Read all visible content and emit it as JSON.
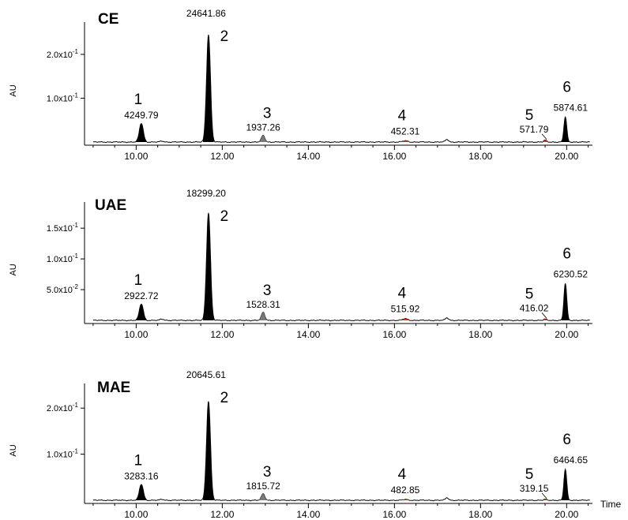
{
  "chart_data": [
    {
      "type": "line",
      "title": "CE",
      "ylabel": "AU",
      "xlabel": "",
      "xlim": [
        8.8,
        20.6
      ],
      "ylim": [
        -0.01,
        0.27
      ],
      "x_ticks": [
        "10.00",
        "12.00",
        "14.00",
        "16.00",
        "18.00",
        "20.00"
      ],
      "y_ticks": [
        {
          "value": 0.1,
          "label": "1.0x10"
        },
        {
          "value": 0.2,
          "label": "2.0x10"
        }
      ],
      "y_tick_exponent": "-1",
      "peaks": [
        {
          "number": "1",
          "time": 10.12,
          "height": 0.043,
          "area": "4249.79"
        },
        {
          "number": "2",
          "time": 11.68,
          "height": 0.245,
          "area": "24641.86"
        },
        {
          "number": "3",
          "time": 12.95,
          "height": 0.015,
          "area": "1937.26"
        },
        {
          "number": "4",
          "time": 16.25,
          "height": 0.003,
          "area": "452.31"
        },
        {
          "number": "5",
          "time": 19.5,
          "height": 0.004,
          "area": "571.79"
        },
        {
          "number": "6",
          "time": 19.97,
          "height": 0.057,
          "area": "5874.61"
        }
      ]
    },
    {
      "type": "line",
      "title": "UAE",
      "ylabel": "AU",
      "xlabel": "",
      "xlim": [
        8.8,
        20.6
      ],
      "ylim": [
        -0.01,
        0.19
      ],
      "x_ticks": [
        "10.00",
        "12.00",
        "14.00",
        "16.00",
        "18.00",
        "20.00"
      ],
      "y_ticks": [
        {
          "value": 0.05,
          "label": "5.0x10",
          "exp": "-2"
        },
        {
          "value": 0.1,
          "label": "1.0x10",
          "exp": "-1"
        },
        {
          "value": 0.15,
          "label": "1.5x10",
          "exp": "-1"
        }
      ],
      "peaks": [
        {
          "number": "1",
          "time": 10.12,
          "height": 0.027,
          "area": "2922.72"
        },
        {
          "number": "2",
          "time": 11.68,
          "height": 0.175,
          "area": "18299.20"
        },
        {
          "number": "3",
          "time": 12.95,
          "height": 0.013,
          "area": "1528.31"
        },
        {
          "number": "4",
          "time": 16.25,
          "height": 0.003,
          "area": "515.92"
        },
        {
          "number": "5",
          "time": 19.5,
          "height": 0.002,
          "area": "416.02"
        },
        {
          "number": "6",
          "time": 19.97,
          "height": 0.06,
          "area": "6230.52"
        }
      ]
    },
    {
      "type": "line",
      "title": "MAE",
      "ylabel": "AU",
      "xlabel": "Time",
      "xlim": [
        8.8,
        20.6
      ],
      "ylim": [
        -0.01,
        0.25
      ],
      "x_ticks": [
        "10.00",
        "12.00",
        "14.00",
        "16.00",
        "18.00",
        "20.00"
      ],
      "y_ticks": [
        {
          "value": 0.1,
          "label": "1.0x10"
        },
        {
          "value": 0.2,
          "label": "2.0x10"
        }
      ],
      "y_tick_exponent": "-1",
      "peaks": [
        {
          "number": "1",
          "time": 10.12,
          "height": 0.035,
          "area": "3283.16"
        },
        {
          "number": "2",
          "time": 11.68,
          "height": 0.215,
          "area": "20645.61"
        },
        {
          "number": "3",
          "time": 12.95,
          "height": 0.014,
          "area": "1815.72"
        },
        {
          "number": "4",
          "time": 16.25,
          "height": 0.002,
          "area": "482.85"
        },
        {
          "number": "5",
          "time": 19.5,
          "height": 0.002,
          "area": "319.15"
        },
        {
          "number": "6",
          "time": 19.97,
          "height": 0.067,
          "area": "6464.65"
        }
      ]
    }
  ],
  "colors": {
    "line": "#000000",
    "peak_fill_major": "#000000",
    "peak_fill_minor": "#7a7a7a",
    "peak_fill_small": "#c0392b"
  }
}
